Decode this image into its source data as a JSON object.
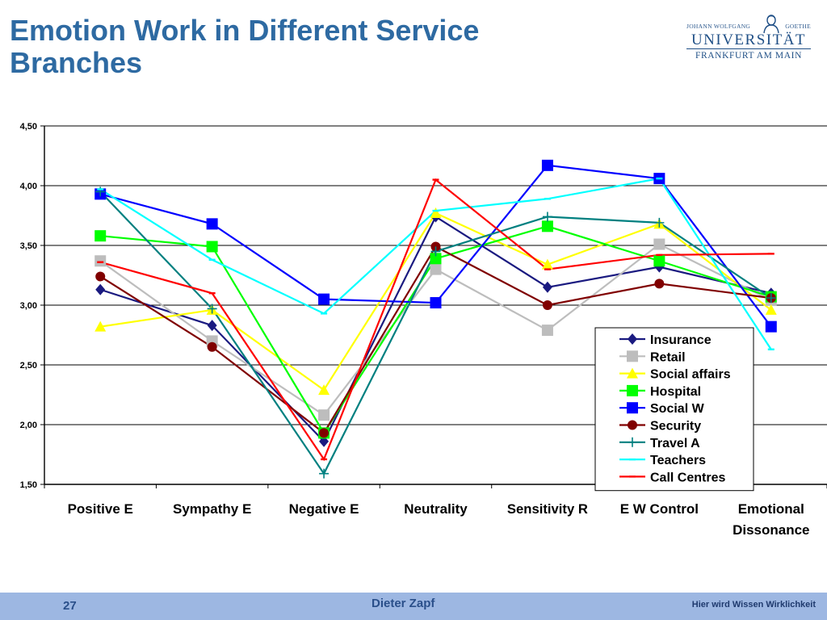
{
  "slide": {
    "title_line1": "Emotion Work in Different Service",
    "title_line2": "Branches"
  },
  "logo": {
    "top_left": "JOHANN WOLFGANG",
    "top_right": "GOETHE",
    "main": "UNIVERSITÄT",
    "sub": "FRANKFURT AM MAIN"
  },
  "footer": {
    "page_number": "27",
    "author": "Dieter Zapf",
    "slogan": "Hier wird Wissen Wirklichkeit"
  },
  "chart_data": {
    "type": "line",
    "title": "",
    "xlabel": "",
    "ylabel": "",
    "ylim": [
      1.5,
      4.5
    ],
    "yticks": [
      "1,50",
      "2,00",
      "2,50",
      "3,00",
      "3,50",
      "4,00",
      "4,50"
    ],
    "grid": "horizontal",
    "legend_position": "bottom-right",
    "categories": [
      "Positive E",
      "Sympathy E",
      "Negative E",
      "Neutrality",
      "Sensitivity R",
      "E W Control",
      "Emotional Dissonance"
    ],
    "series": [
      {
        "name": "Insurance",
        "color": "#1a1a80",
        "marker": "diamond",
        "values": [
          3.13,
          2.83,
          1.86,
          3.74,
          3.15,
          3.32,
          3.1
        ]
      },
      {
        "name": "Retail",
        "color": "#bdbdbd",
        "marker": "square",
        "values": [
          3.37,
          2.7,
          2.08,
          3.3,
          2.79,
          3.51,
          3.04
        ]
      },
      {
        "name": "Social affairs",
        "color": "#ffff00",
        "marker": "triangle",
        "values": [
          2.82,
          2.96,
          2.29,
          3.77,
          3.34,
          3.68,
          2.96
        ]
      },
      {
        "name": "Hospital",
        "color": "#00ff00",
        "marker": "square",
        "values": [
          3.58,
          3.49,
          1.93,
          3.39,
          3.66,
          3.37,
          3.07
        ]
      },
      {
        "name": "Social W",
        "color": "#0000ff",
        "marker": "square",
        "values": [
          3.93,
          3.68,
          3.05,
          3.02,
          4.17,
          4.06,
          2.82
        ]
      },
      {
        "name": "Security",
        "color": "#800000",
        "marker": "circle",
        "values": [
          3.24,
          2.65,
          1.93,
          3.49,
          3.0,
          3.18,
          3.06
        ]
      },
      {
        "name": "Travel A",
        "color": "#008080",
        "marker": "plus",
        "values": [
          3.95,
          2.97,
          1.59,
          3.45,
          3.74,
          3.69,
          3.06
        ]
      },
      {
        "name": "Teachers",
        "color": "#00ffff",
        "marker": "dash",
        "values": [
          3.97,
          3.38,
          2.93,
          3.79,
          3.89,
          4.06,
          2.63
        ]
      },
      {
        "name": "Call Centres",
        "color": "#ff0000",
        "marker": "dash",
        "values": [
          3.36,
          3.1,
          1.71,
          4.05,
          3.3,
          3.42,
          3.43
        ]
      }
    ]
  }
}
